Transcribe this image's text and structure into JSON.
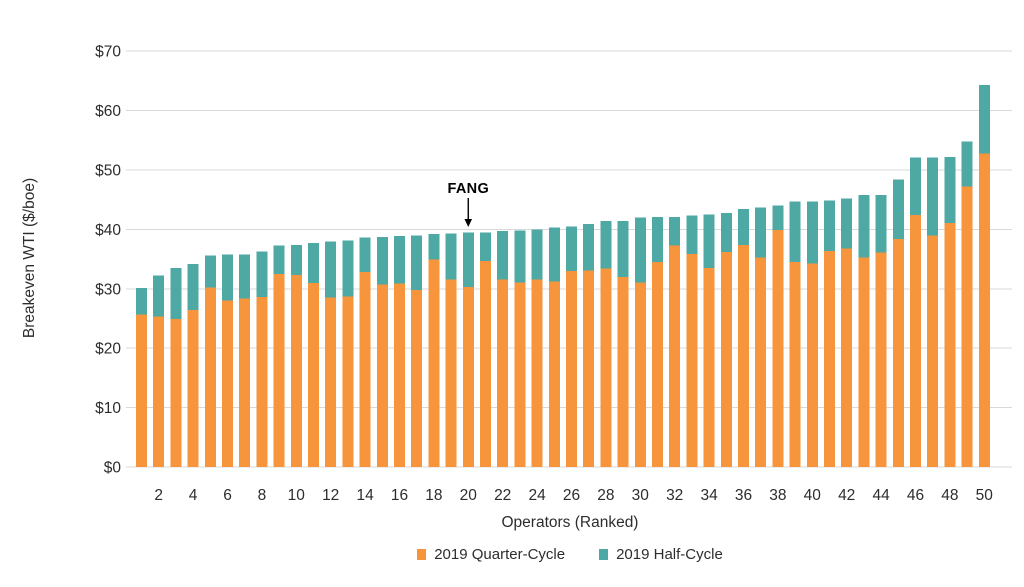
{
  "chart_data": {
    "type": "bar",
    "stacked": true,
    "title": "",
    "xlabel": "Operators (Ranked)",
    "ylabel": "Breakeven WTI ($/boe)",
    "ylim": [
      0,
      70
    ],
    "grid": "horizontal",
    "legend_position": "bottom",
    "x": [
      1,
      2,
      3,
      4,
      5,
      6,
      7,
      8,
      9,
      10,
      11,
      12,
      13,
      14,
      15,
      16,
      17,
      18,
      19,
      20,
      21,
      22,
      23,
      24,
      25,
      26,
      27,
      28,
      29,
      30,
      31,
      32,
      33,
      34,
      35,
      36,
      37,
      38,
      39,
      40,
      41,
      42,
      43,
      44,
      45,
      46,
      47,
      48,
      49,
      50
    ],
    "x_tick_labels": [
      "2",
      "4",
      "6",
      "8",
      "10",
      "12",
      "14",
      "16",
      "18",
      "20",
      "22",
      "24",
      "26",
      "28",
      "30",
      "32",
      "34",
      "36",
      "38",
      "40",
      "42",
      "44",
      "46",
      "48",
      "50"
    ],
    "x_tick_values": [
      2,
      4,
      6,
      8,
      10,
      12,
      14,
      16,
      18,
      20,
      22,
      24,
      26,
      28,
      30,
      32,
      34,
      36,
      38,
      40,
      42,
      44,
      46,
      48,
      50
    ],
    "y_tick_labels": [
      "$0",
      "$10",
      "$20",
      "$30",
      "$40",
      "$50",
      "$60",
      "$70"
    ],
    "y_tick_values": [
      0,
      10,
      20,
      30,
      40,
      50,
      60,
      70
    ],
    "series": [
      {
        "name": "2019 Quarter-Cycle",
        "color": "#F6953B",
        "values": [
          25.7,
          25.3,
          24.9,
          26.4,
          30.2,
          28.0,
          28.4,
          28.6,
          32.5,
          32.3,
          31.0,
          28.5,
          28.7,
          32.8,
          30.7,
          30.9,
          29.8,
          34.9,
          31.6,
          30.3,
          34.7,
          31.6,
          31.1,
          31.6,
          31.2,
          33.0,
          33.1,
          33.4,
          32.0,
          31.1,
          34.5,
          37.3,
          35.9,
          33.5,
          36.2,
          37.4,
          35.3,
          39.9,
          34.5,
          34.3,
          36.4,
          36.8,
          35.3,
          36.1,
          38.4,
          42.4,
          39.0,
          41.1,
          47.2,
          52.8
        ]
      },
      {
        "name": "2019 Half-Cycle",
        "color": "#4EA8A4",
        "stack_top_values": [
          30.1,
          32.2,
          33.5,
          34.2,
          35.6,
          35.8,
          35.8,
          36.3,
          37.3,
          37.4,
          37.7,
          38.0,
          38.1,
          38.6,
          38.7,
          38.9,
          39.0,
          39.2,
          39.3,
          39.5,
          39.5,
          39.7,
          39.8,
          40.0,
          40.3,
          40.5,
          40.9,
          41.4,
          41.4,
          42.0,
          42.1,
          42.1,
          42.3,
          42.5,
          42.8,
          43.4,
          43.7,
          44.0,
          44.7,
          44.7,
          44.9,
          45.2,
          45.8,
          45.8,
          48.4,
          52.1,
          52.1,
          52.2,
          54.8,
          64.3
        ]
      }
    ],
    "annotation": {
      "label": "FANG",
      "target_rank": 20
    },
    "colors": {
      "quarter_cycle": "#F6953B",
      "half_cycle": "#4EA8A4",
      "gridline": "#D9D9D9",
      "axis_text": "#2d2d2d",
      "annotation_text": "#000000"
    }
  }
}
